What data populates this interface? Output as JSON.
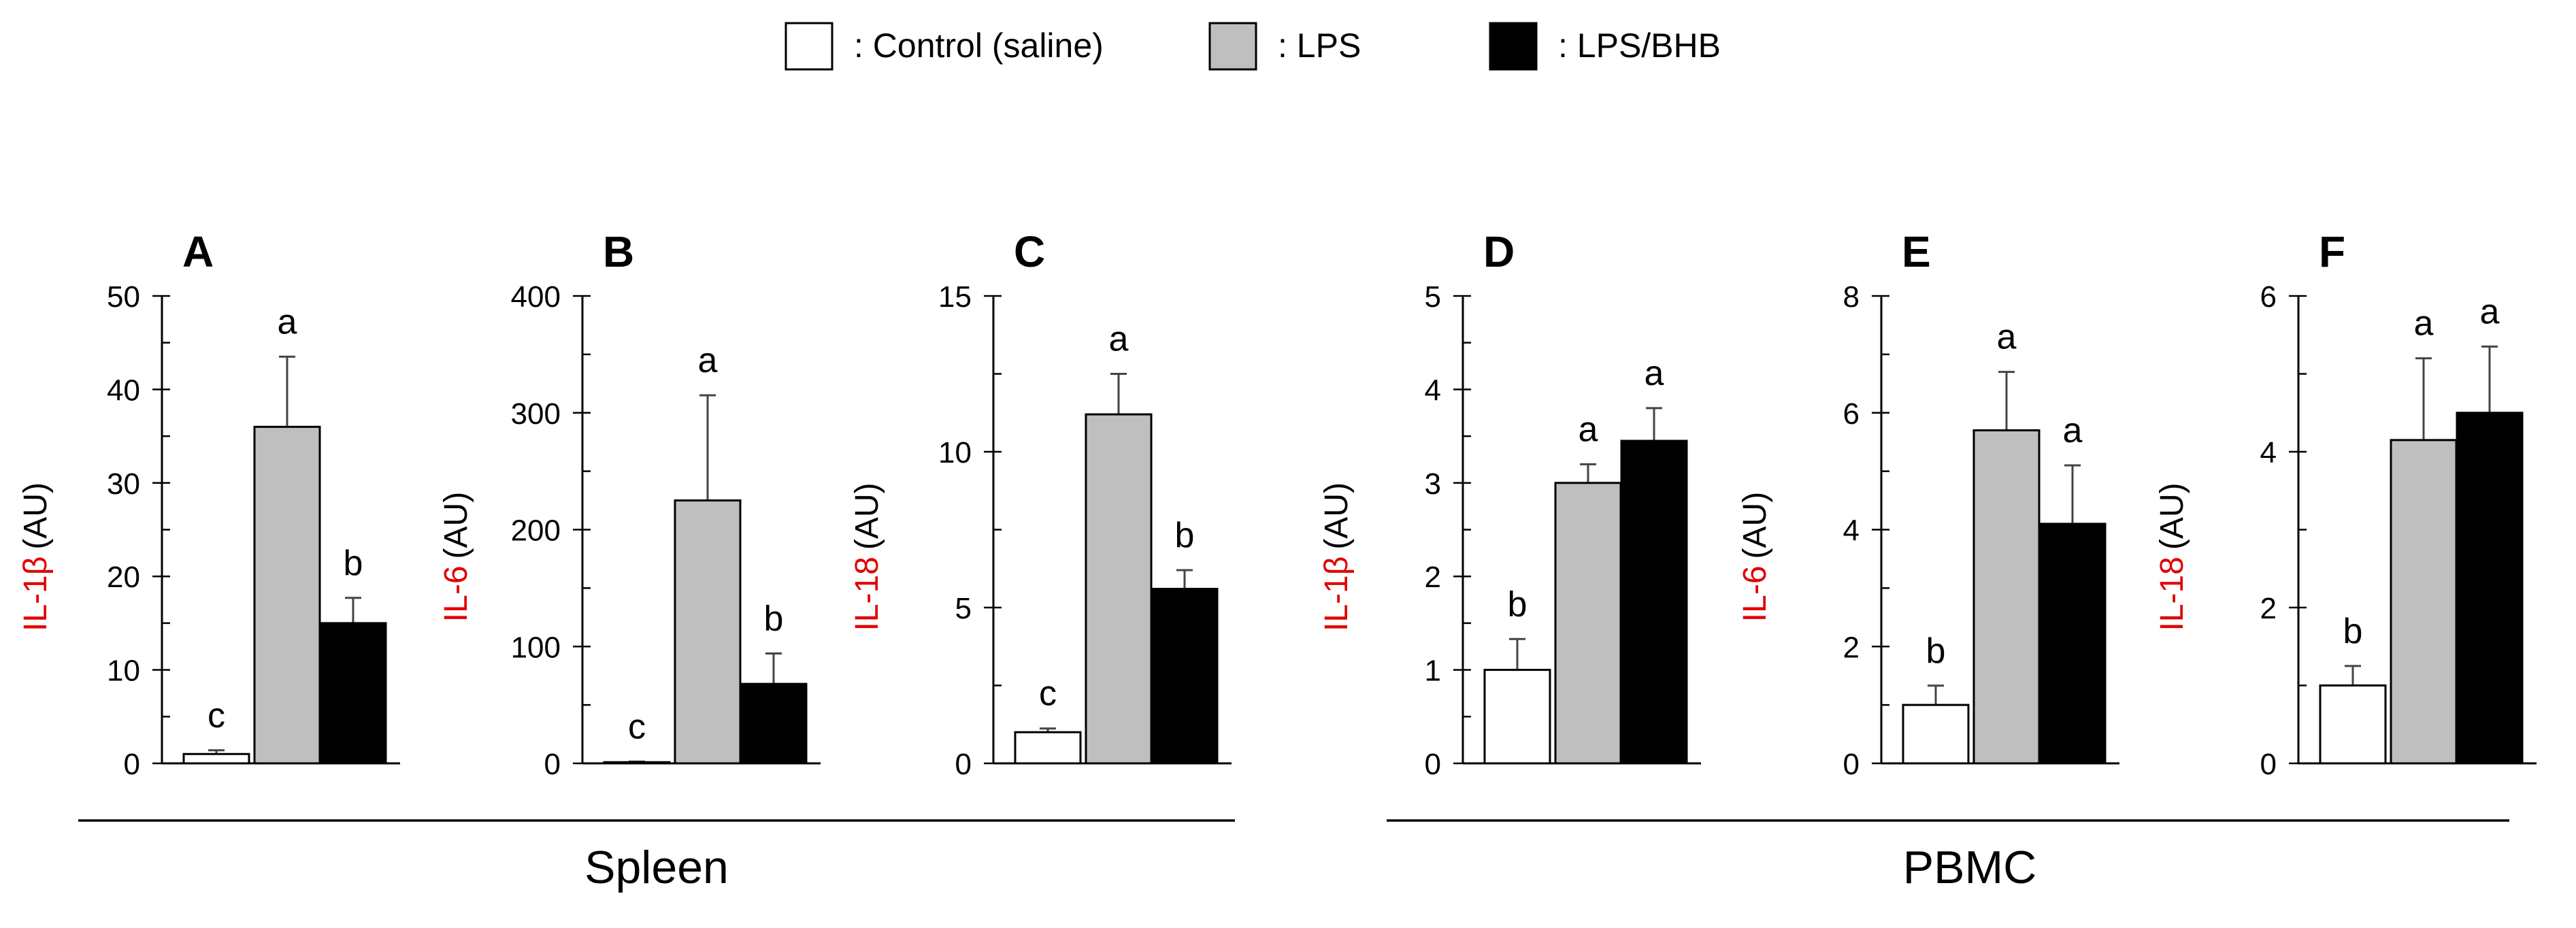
{
  "legend": {
    "items": [
      {
        "label": ": Control (saline)",
        "color": "#ffffff"
      },
      {
        "label": ": LPS",
        "color": "#bfbfbf"
      },
      {
        "label": ": LPS/BHB",
        "color": "#000000"
      }
    ]
  },
  "groups": [
    {
      "name": "Spleen"
    },
    {
      "name": "PBMC"
    }
  ],
  "chart_data": [
    {
      "type": "bar",
      "panel": "A",
      "group": "Spleen",
      "ylabel_marker": "IL-1β",
      "ylabel_unit": "(AU)",
      "categories": [
        "Control (saline)",
        "LPS",
        "LPS/BHB"
      ],
      "values": [
        1,
        36,
        15
      ],
      "errors": [
        0.4,
        7.5,
        2.7
      ],
      "letters": [
        "c",
        "a",
        "b"
      ],
      "ylim": [
        0,
        50
      ],
      "yticks": [
        0,
        10,
        20,
        30,
        40,
        50
      ],
      "minor_step": 5
    },
    {
      "type": "bar",
      "panel": "B",
      "group": "Spleen",
      "ylabel_marker": "IL-6",
      "ylabel_unit": "(AU)",
      "categories": [
        "Control (saline)",
        "LPS",
        "LPS/BHB"
      ],
      "values": [
        1,
        225,
        68
      ],
      "errors": [
        0.5,
        90,
        26
      ],
      "letters": [
        "c",
        "a",
        "b"
      ],
      "ylim": [
        0,
        400
      ],
      "yticks": [
        0,
        100,
        200,
        300,
        400
      ],
      "minor_step": 50
    },
    {
      "type": "bar",
      "panel": "C",
      "group": "Spleen",
      "ylabel_marker": "IL-18",
      "ylabel_unit": "(AU)",
      "categories": [
        "Control (saline)",
        "LPS",
        "LPS/BHB"
      ],
      "values": [
        1,
        11.2,
        5.6
      ],
      "errors": [
        0.12,
        1.3,
        0.6
      ],
      "letters": [
        "c",
        "a",
        "b"
      ],
      "ylim": [
        0,
        15
      ],
      "yticks": [
        0,
        5,
        10,
        15
      ],
      "minor_step": 2.5
    },
    {
      "type": "bar",
      "panel": "D",
      "group": "PBMC",
      "ylabel_marker": "IL-1β",
      "ylabel_unit": "(AU)",
      "categories": [
        "Control (saline)",
        "LPS",
        "LPS/BHB"
      ],
      "values": [
        1,
        3,
        3.45
      ],
      "errors": [
        0.33,
        0.2,
        0.35
      ],
      "letters": [
        "b",
        "a",
        "a"
      ],
      "ylim": [
        0,
        5
      ],
      "yticks": [
        0,
        1,
        2,
        3,
        4,
        5
      ],
      "minor_step": 0.5
    },
    {
      "type": "bar",
      "panel": "E",
      "group": "PBMC",
      "ylabel_marker": "IL-6",
      "ylabel_unit": "(AU)",
      "categories": [
        "Control (saline)",
        "LPS",
        "LPS/BHB"
      ],
      "values": [
        1,
        5.7,
        4.1
      ],
      "errors": [
        0.33,
        1.0,
        1.0
      ],
      "letters": [
        "b",
        "a",
        "a"
      ],
      "ylim": [
        0,
        8
      ],
      "yticks": [
        0,
        2,
        4,
        6,
        8
      ],
      "minor_step": 1
    },
    {
      "type": "bar",
      "panel": "F",
      "group": "PBMC",
      "ylabel_marker": "IL-18",
      "ylabel_unit": "(AU)",
      "categories": [
        "Control (saline)",
        "LPS",
        "LPS/BHB"
      ],
      "values": [
        1,
        4.15,
        4.5
      ],
      "errors": [
        0.25,
        1.05,
        0.85
      ],
      "letters": [
        "b",
        "a",
        "a"
      ],
      "ylim": [
        0,
        6
      ],
      "yticks": [
        0,
        2,
        4,
        6
      ],
      "minor_step": 1
    }
  ]
}
